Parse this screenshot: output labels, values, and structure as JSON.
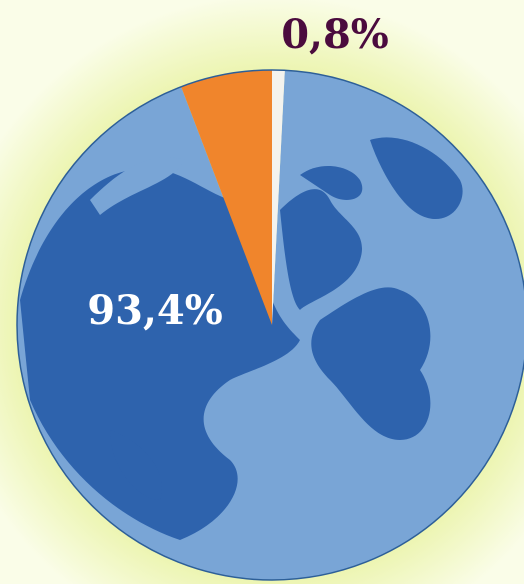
{
  "chart_data": {
    "type": "pie",
    "categories": [
      null,
      null,
      null
    ],
    "values": [
      0.8,
      93.4,
      5.8
    ],
    "value_labels": [
      "0,8%",
      "93,4%",
      null
    ],
    "colors": [
      "#f4f3ee",
      "#79a5d6",
      "#f0852c"
    ]
  }
}
